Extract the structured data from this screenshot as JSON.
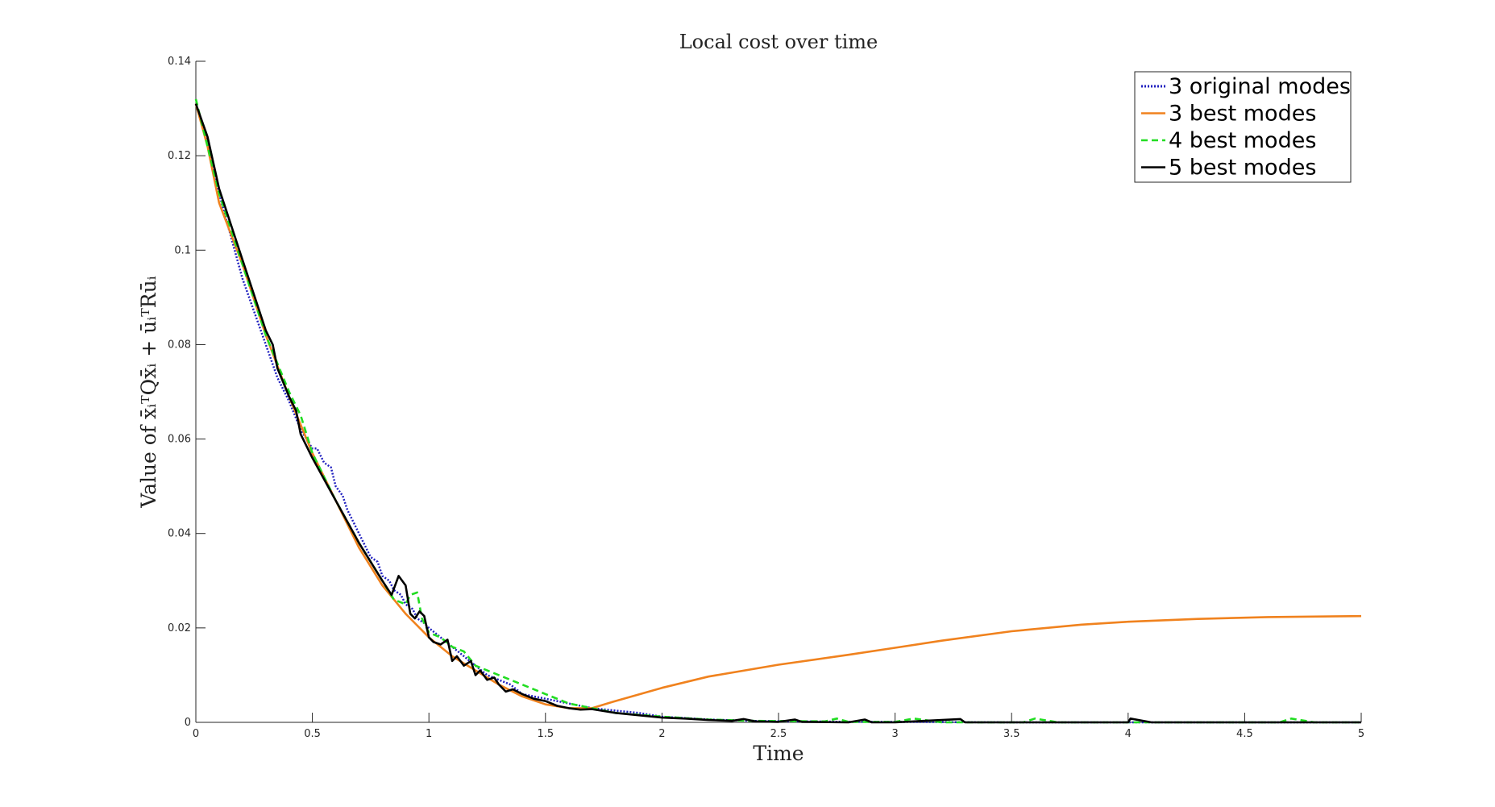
{
  "chart_data": {
    "type": "line",
    "title": "Local cost over time",
    "xlabel": "Time",
    "ylabel": "Value of x̄ᵢᵀQx̄ᵢ + ūᵢᵀRūᵢ",
    "xlim": [
      0,
      5
    ],
    "ylim": [
      0,
      0.14
    ],
    "xticks": [
      0,
      0.5,
      1,
      1.5,
      2,
      2.5,
      3,
      3.5,
      4,
      4.5,
      5
    ],
    "xtick_labels": [
      "0",
      "0.5",
      "1",
      "1.5",
      "2",
      "2.5",
      "3",
      "3.5",
      "4",
      "4.5",
      "5"
    ],
    "yticks": [
      0,
      0.02,
      0.04,
      0.06,
      0.08,
      0.1,
      0.12,
      0.14
    ],
    "ytick_labels": [
      "0",
      "0.02",
      "0.04",
      "0.06",
      "0.08",
      "0.1",
      "0.12",
      "0.14"
    ],
    "grid": false,
    "legend_position": "top-right",
    "series": [
      {
        "name": "3 original modes",
        "color": "#1f1fbf",
        "style": "dotted",
        "x": [
          0,
          0.05,
          0.1,
          0.2,
          0.3,
          0.35,
          0.4,
          0.45,
          0.5,
          0.52,
          0.55,
          0.58,
          0.6,
          0.63,
          0.65,
          0.68,
          0.7,
          0.73,
          0.75,
          0.78,
          0.8,
          0.83,
          0.85,
          0.88,
          0.9,
          0.93,
          0.95,
          0.98,
          1.0,
          1.05,
          1.1,
          1.15,
          1.2,
          1.25,
          1.3,
          1.35,
          1.4,
          1.45,
          1.5,
          1.6,
          1.7,
          1.8,
          1.9,
          2.0,
          2.2,
          2.4,
          2.6,
          2.8,
          3.0,
          3.5,
          4.0,
          4.5,
          5.0
        ],
        "y": [
          0.131,
          0.123,
          0.112,
          0.094,
          0.08,
          0.073,
          0.068,
          0.062,
          0.058,
          0.058,
          0.055,
          0.054,
          0.05,
          0.048,
          0.045,
          0.042,
          0.04,
          0.037,
          0.035,
          0.034,
          0.031,
          0.03,
          0.028,
          0.027,
          0.025,
          0.024,
          0.022,
          0.021,
          0.02,
          0.018,
          0.016,
          0.014,
          0.012,
          0.01,
          0.009,
          0.008,
          0.006,
          0.0055,
          0.005,
          0.004,
          0.003,
          0.0025,
          0.002,
          0.0012,
          0.0006,
          0.0003,
          0.0002,
          0.0001,
          0.0001,
          0.0,
          0.0,
          0.0,
          0.0
        ]
      },
      {
        "name": "3 best modes",
        "color": "#f0821e",
        "style": "solid",
        "x": [
          0,
          0.05,
          0.1,
          0.2,
          0.3,
          0.4,
          0.5,
          0.6,
          0.7,
          0.8,
          0.9,
          1.0,
          1.1,
          1.2,
          1.3,
          1.4,
          1.5,
          1.6,
          1.7,
          1.8,
          2.0,
          2.2,
          2.5,
          2.8,
          3.0,
          3.2,
          3.5,
          3.8,
          4.0,
          4.3,
          4.6,
          5.0
        ],
        "y": [
          0.131,
          0.122,
          0.11,
          0.097,
          0.082,
          0.069,
          0.057,
          0.047,
          0.037,
          0.029,
          0.023,
          0.018,
          0.014,
          0.011,
          0.008,
          0.0055,
          0.0038,
          0.003,
          0.003,
          0.0045,
          0.0073,
          0.0097,
          0.0122,
          0.0143,
          0.0158,
          0.0173,
          0.0193,
          0.0207,
          0.0213,
          0.0219,
          0.0223,
          0.0225
        ]
      },
      {
        "name": "4 best modes",
        "color": "#22dd22",
        "style": "dashed",
        "x": [
          0,
          0.05,
          0.1,
          0.2,
          0.3,
          0.4,
          0.45,
          0.5,
          0.6,
          0.7,
          0.8,
          0.85,
          0.9,
          0.92,
          0.95,
          0.97,
          1.0,
          1.05,
          1.1,
          1.15,
          1.2,
          1.25,
          1.3,
          1.4,
          1.5,
          1.6,
          1.7,
          1.8,
          2.0,
          2.2,
          2.4,
          2.7,
          2.75,
          2.8,
          3.0,
          3.08,
          3.2,
          3.55,
          3.6,
          3.7,
          4.0,
          4.65,
          4.7,
          4.8,
          5.0
        ],
        "y": [
          0.132,
          0.122,
          0.112,
          0.097,
          0.082,
          0.07,
          0.065,
          0.057,
          0.047,
          0.038,
          0.03,
          0.026,
          0.025,
          0.027,
          0.0275,
          0.022,
          0.019,
          0.018,
          0.016,
          0.015,
          0.012,
          0.011,
          0.01,
          0.008,
          0.006,
          0.004,
          0.003,
          0.002,
          0.0012,
          0.0006,
          0.0003,
          0.0002,
          0.0008,
          0.0001,
          0.0001,
          0.0008,
          0.0,
          0.0,
          0.0008,
          0.0,
          0.0,
          0.0,
          0.0008,
          0.0,
          0.0
        ]
      },
      {
        "name": "5 best modes",
        "color": "#000000",
        "style": "solid",
        "x": [
          0,
          0.05,
          0.1,
          0.2,
          0.3,
          0.33,
          0.35,
          0.4,
          0.43,
          0.45,
          0.5,
          0.6,
          0.7,
          0.8,
          0.84,
          0.87,
          0.9,
          0.92,
          0.94,
          0.96,
          0.98,
          1.0,
          1.02,
          1.05,
          1.08,
          1.1,
          1.12,
          1.15,
          1.18,
          1.2,
          1.22,
          1.25,
          1.28,
          1.3,
          1.33,
          1.36,
          1.4,
          1.45,
          1.5,
          1.55,
          1.6,
          1.65,
          1.7,
          1.8,
          1.9,
          2.0,
          2.1,
          2.2,
          2.3,
          2.35,
          2.4,
          2.5,
          2.57,
          2.6,
          2.8,
          2.87,
          2.9,
          3.0,
          3.28,
          3.3,
          3.5,
          4.0,
          4.01,
          4.1,
          4.5,
          5.0
        ],
        "y": [
          0.131,
          0.124,
          0.113,
          0.098,
          0.083,
          0.08,
          0.075,
          0.069,
          0.066,
          0.061,
          0.056,
          0.047,
          0.038,
          0.03,
          0.027,
          0.031,
          0.029,
          0.023,
          0.022,
          0.0235,
          0.0225,
          0.018,
          0.017,
          0.0165,
          0.0175,
          0.013,
          0.014,
          0.012,
          0.013,
          0.01,
          0.011,
          0.009,
          0.0095,
          0.008,
          0.0065,
          0.007,
          0.006,
          0.005,
          0.0045,
          0.0035,
          0.003,
          0.0027,
          0.0028,
          0.002,
          0.0015,
          0.001,
          0.0008,
          0.0005,
          0.0003,
          0.0007,
          0.0002,
          0.0001,
          0.0006,
          0.0001,
          0.0,
          0.0006,
          0.0,
          0.0,
          0.0007,
          0.0,
          0.0,
          0.0,
          0.0008,
          0.0,
          0.0,
          0.0
        ]
      }
    ]
  }
}
